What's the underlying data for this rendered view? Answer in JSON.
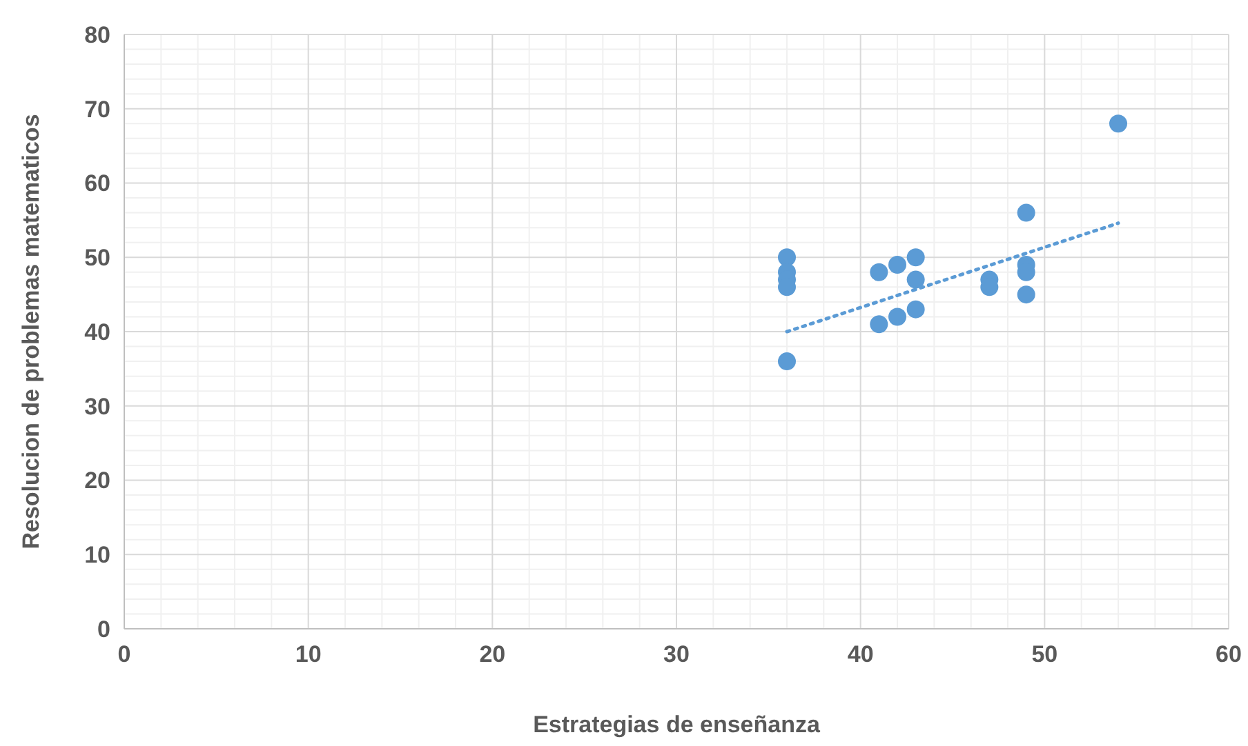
{
  "chart_data": {
    "type": "scatter",
    "xlabel": "Estrategias de enseñanza",
    "ylabel": "Resolucion de problemas matematicos",
    "xlim": [
      0,
      60
    ],
    "xticks": [
      0,
      10,
      20,
      30,
      40,
      50,
      60
    ],
    "ylim": [
      0,
      80
    ],
    "yticks": [
      0,
      10,
      20,
      30,
      40,
      50,
      60,
      70,
      80
    ],
    "grid": true,
    "series": [
      {
        "color": "#5b9bd5",
        "marker": "circle",
        "x": [
          36,
          36,
          36,
          36,
          36,
          41,
          41,
          42,
          42,
          43,
          43,
          43,
          47,
          47,
          49,
          49,
          49,
          49,
          54
        ],
        "values": [
          50,
          48,
          47,
          46,
          36,
          48,
          41,
          49,
          42,
          50,
          47,
          43,
          47,
          46,
          56,
          49,
          48,
          45,
          68
        ]
      },
      {
        "type": "line",
        "color": "#5b9bd5",
        "line_style": "dotted",
        "x": [
          36,
          54
        ],
        "values": [
          40,
          54.6
        ]
      }
    ]
  }
}
